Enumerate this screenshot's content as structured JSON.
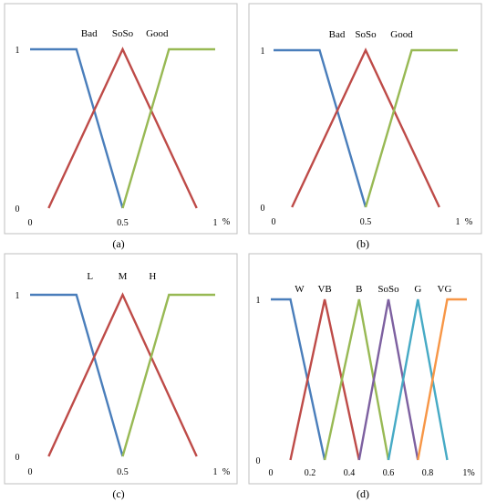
{
  "chart_data": [
    {
      "type": "line",
      "panel_label": "(a)",
      "x_ticks": [
        "0",
        "0.5",
        "1"
      ],
      "y_ticks": [
        "0",
        "1"
      ],
      "x_unit": "%",
      "xlim": [
        0,
        1
      ],
      "ylim": [
        0,
        1
      ],
      "series": [
        {
          "name": "Bad",
          "color": "#4a7ebb",
          "x": [
            0,
            0.25,
            0.5
          ],
          "y": [
            1,
            1,
            0
          ]
        },
        {
          "name": "SoSo",
          "color": "#be4b48",
          "x": [
            0.1,
            0.5,
            0.9
          ],
          "y": [
            0,
            1,
            0
          ]
        },
        {
          "name": "Good",
          "color": "#98b954",
          "x": [
            0.5,
            0.75,
            1
          ],
          "y": [
            0,
            1,
            1
          ]
        }
      ]
    },
    {
      "type": "line",
      "panel_label": "(b)",
      "x_ticks": [
        "0",
        "0.5",
        "1"
      ],
      "y_ticks": [
        "0",
        "1"
      ],
      "x_unit": "%",
      "xlim": [
        0,
        1
      ],
      "ylim": [
        0,
        1
      ],
      "series": [
        {
          "name": "Bad",
          "color": "#4a7ebb",
          "x": [
            0,
            0.25,
            0.5
          ],
          "y": [
            1,
            1,
            0
          ]
        },
        {
          "name": "SoSo",
          "color": "#be4b48",
          "x": [
            0.1,
            0.5,
            0.9
          ],
          "y": [
            0,
            1,
            0
          ]
        },
        {
          "name": "Good",
          "color": "#98b954",
          "x": [
            0.5,
            0.75,
            1
          ],
          "y": [
            0,
            1,
            1
          ]
        }
      ]
    },
    {
      "type": "line",
      "panel_label": "(c)",
      "x_ticks": [
        "0",
        "0.5",
        "1"
      ],
      "y_ticks": [
        "0",
        "1"
      ],
      "x_unit": "%",
      "xlim": [
        0,
        1
      ],
      "ylim": [
        0,
        1
      ],
      "series": [
        {
          "name": "L",
          "color": "#4a7ebb",
          "x": [
            0,
            0.25,
            0.5
          ],
          "y": [
            1,
            1,
            0
          ]
        },
        {
          "name": "M",
          "color": "#be4b48",
          "x": [
            0.1,
            0.5,
            0.9
          ],
          "y": [
            0,
            1,
            0
          ]
        },
        {
          "name": "H",
          "color": "#98b954",
          "x": [
            0.5,
            0.75,
            1
          ],
          "y": [
            0,
            1,
            1
          ]
        }
      ]
    },
    {
      "type": "line",
      "panel_label": "(d)",
      "x_ticks": [
        "0",
        "0.2",
        "0.4",
        "0.6",
        "0.8",
        "1%"
      ],
      "y_ticks": [
        "0",
        "1"
      ],
      "x_unit": "",
      "xlim": [
        0,
        1
      ],
      "ylim": [
        0,
        1
      ],
      "series": [
        {
          "name": "W",
          "color": "#4a7ebb",
          "x": [
            0,
            0.1,
            0.275
          ],
          "y": [
            1,
            1,
            0
          ]
        },
        {
          "name": "VB",
          "color": "#be4b48",
          "x": [
            0.1,
            0.275,
            0.45
          ],
          "y": [
            0,
            1,
            0
          ]
        },
        {
          "name": "B",
          "color": "#98b954",
          "x": [
            0.275,
            0.45,
            0.6
          ],
          "y": [
            0,
            1,
            0
          ]
        },
        {
          "name": "SoSo",
          "color": "#7d60a0",
          "x": [
            0.45,
            0.6,
            0.75
          ],
          "y": [
            0,
            1,
            0
          ]
        },
        {
          "name": "G",
          "color": "#46aac5",
          "x": [
            0.6,
            0.75,
            0.9
          ],
          "y": [
            0,
            1,
            0
          ]
        },
        {
          "name": "VG",
          "color": "#f79646",
          "x": [
            0.75,
            0.9,
            1
          ],
          "y": [
            0,
            1,
            1
          ]
        }
      ]
    }
  ]
}
